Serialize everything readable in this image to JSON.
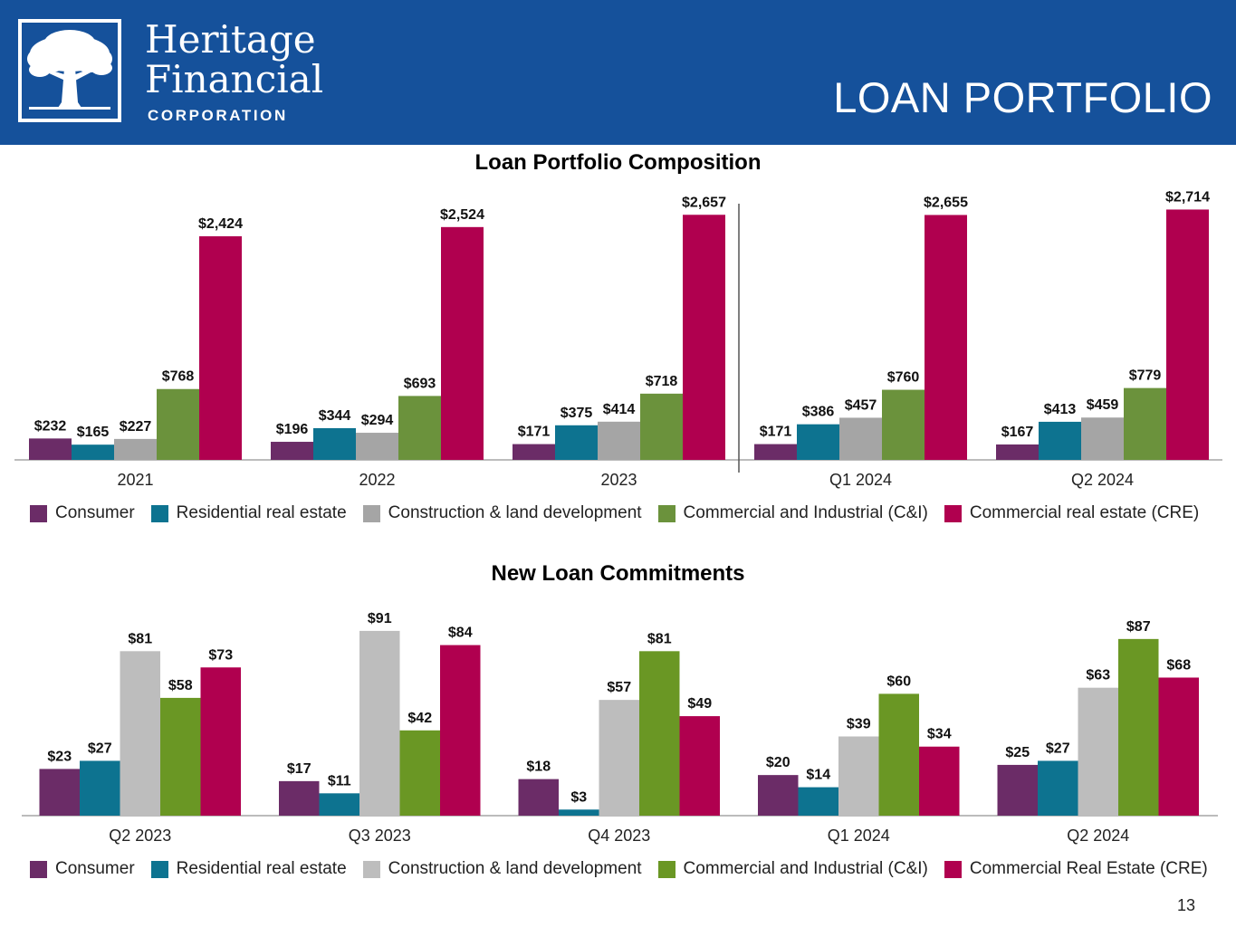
{
  "header": {
    "logo_line1": "Heritage",
    "logo_line2": "Financial",
    "logo_line3": "CORPORATION",
    "page_title": "LOAN PORTFOLIO"
  },
  "colors": {
    "header_bg": "#15519b",
    "consumer": "#6b2c67",
    "residential": "#0d7390",
    "construction_top": "#a5a5a5",
    "construction_bottom": "#bdbdbd",
    "cni_top": "#6b923c",
    "cni_bottom": "#6a9724",
    "cre": "#b0004f"
  },
  "page_number": "13",
  "chart_data": [
    {
      "type": "bar",
      "title": "Loan Portfolio Composition",
      "categories": [
        "2021",
        "2022",
        "2023",
        "Q1 2024",
        "Q2 2024"
      ],
      "ylim": [
        0,
        2800
      ],
      "xlabel": "",
      "ylabel": "",
      "series": [
        {
          "name": "Consumer",
          "values": [
            232,
            196,
            171,
            171,
            167
          ],
          "labels": [
            "$232",
            "$196",
            "$171",
            "$171",
            "$167"
          ]
        },
        {
          "name": "Residential real estate",
          "values": [
            165,
            344,
            375,
            386,
            413
          ],
          "labels": [
            "$165",
            "$344",
            "$375",
            "$386",
            "$413"
          ]
        },
        {
          "name": "Construction & land development",
          "values": [
            227,
            294,
            414,
            457,
            459
          ],
          "labels": [
            "$227",
            "$294",
            "$414",
            "$457",
            "$459"
          ]
        },
        {
          "name": "Commercial and Industrial (C&I)",
          "values": [
            768,
            693,
            718,
            760,
            779
          ],
          "labels": [
            "$768",
            "$693",
            "$718",
            "$760",
            "$779"
          ]
        },
        {
          "name": "Commercial real estate (CRE)",
          "values": [
            2424,
            2524,
            2657,
            2655,
            2714
          ],
          "labels": [
            "$2,424",
            "$2,524",
            "$2,657",
            "$2,655",
            "$2,714"
          ]
        }
      ]
    },
    {
      "type": "bar",
      "title": "New Loan Commitments",
      "categories": [
        "Q2 2023",
        "Q3 2023",
        "Q4 2023",
        "Q1 2024",
        "Q2 2024"
      ],
      "ylim": [
        0,
        100
      ],
      "xlabel": "",
      "ylabel": "",
      "series": [
        {
          "name": "Consumer",
          "values": [
            23,
            17,
            18,
            20,
            25
          ],
          "labels": [
            "$23",
            "$17",
            "$18",
            "$20",
            "$25"
          ]
        },
        {
          "name": "Residential real estate",
          "values": [
            27,
            11,
            3,
            14,
            27
          ],
          "labels": [
            "$27",
            "$11",
            "$3",
            "$14",
            "$27"
          ]
        },
        {
          "name": "Construction & land development",
          "values": [
            81,
            91,
            57,
            39,
            63
          ],
          "labels": [
            "$81",
            "$91",
            "$57",
            "$39",
            "$63"
          ]
        },
        {
          "name": "Commercial and Industrial (C&I)",
          "values": [
            58,
            42,
            81,
            60,
            87
          ],
          "labels": [
            "$58",
            "$42",
            "$81",
            "$60",
            "$87"
          ]
        },
        {
          "name": "Commercial Real Estate (CRE)",
          "values": [
            73,
            84,
            49,
            34,
            68
          ],
          "labels": [
            "$73",
            "$84",
            "$49",
            "$34",
            "$68"
          ]
        }
      ]
    }
  ]
}
